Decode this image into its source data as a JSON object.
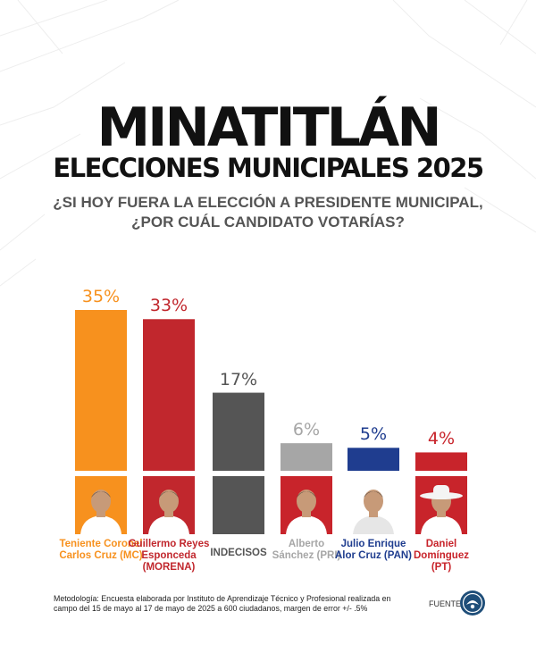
{
  "header": {
    "title": "MINATITLÁN",
    "subtitle": "ELECCIONES MUNICIPALES 2025",
    "question_line1": "¿SI HOY FUERA LA ELECCIÓN A PRESIDENTE MUNICIPAL,",
    "question_line2": "¿POR CUÁL CANDIDATO VOTARÍAS?"
  },
  "chart_data": {
    "type": "bar",
    "categories": [
      "Teniente Coronel Carlos Cruz (MC)",
      "Guillermo Reyes Esponceda (MORENA)",
      "INDECISOS",
      "Alberto Sánchez (PRI)",
      "Julio Enrique Alor Cruz (PAN)",
      "Daniel Domínguez (PT)"
    ],
    "values": [
      35,
      33,
      17,
      6,
      5,
      4
    ],
    "value_labels": [
      "35%",
      "33%",
      "17%",
      "6%",
      "5%",
      "4%"
    ],
    "colors": [
      "#f7911e",
      "#c1272d",
      "#555555",
      "#a6a6a6",
      "#1f3d8f",
      "#c8242b"
    ],
    "label_colors": [
      "#f7911e",
      "#c1272d",
      "#555555",
      "#a6a6a6",
      "#1f3d8f",
      "#c8242b"
    ],
    "ylim": [
      0,
      35
    ],
    "grid": false,
    "legend": "none"
  },
  "candidates": [
    {
      "line1": "Teniente Coronel",
      "line2": "Carlos Cruz (MC)",
      "line3": "",
      "photo_bg": "#f7911e",
      "photo_icon": "candidate-photo"
    },
    {
      "line1": "Guillermo Reyes",
      "line2": "Esponceda",
      "line3": "(MORENA)",
      "photo_bg": "#c1272d",
      "photo_icon": "candidate-photo"
    },
    {
      "line1": "INDECISOS",
      "line2": "",
      "line3": "",
      "photo_bg": "#555555",
      "photo_icon": ""
    },
    {
      "line1": "Alberto",
      "line2": "Sánchez (PRI)",
      "line3": "",
      "photo_bg": "#c8242b",
      "photo_icon": "candidate-photo"
    },
    {
      "line1": "Julio Enrique",
      "line2": "Alor Cruz (PAN)",
      "line3": "",
      "photo_bg": "#ffffff",
      "photo_icon": "candidate-photo"
    },
    {
      "line1": "Daniel",
      "line2": "Domínguez",
      "line3": "(PT)",
      "photo_bg": "#c8242b",
      "photo_icon": "candidate-photo"
    }
  ],
  "footer": {
    "methodology_line1": "Metodología: Encuesta elaborada por Instituto de Aprendizaje Técnico y Profesional realizada en",
    "methodology_line2": "campo del 15 de mayo al 17 de mayo de 2025 a 600 ciudadanos, margen de error +/- .5%",
    "source_label": "FUENTE:",
    "source_logo_icon": "institute-seal-logo"
  }
}
